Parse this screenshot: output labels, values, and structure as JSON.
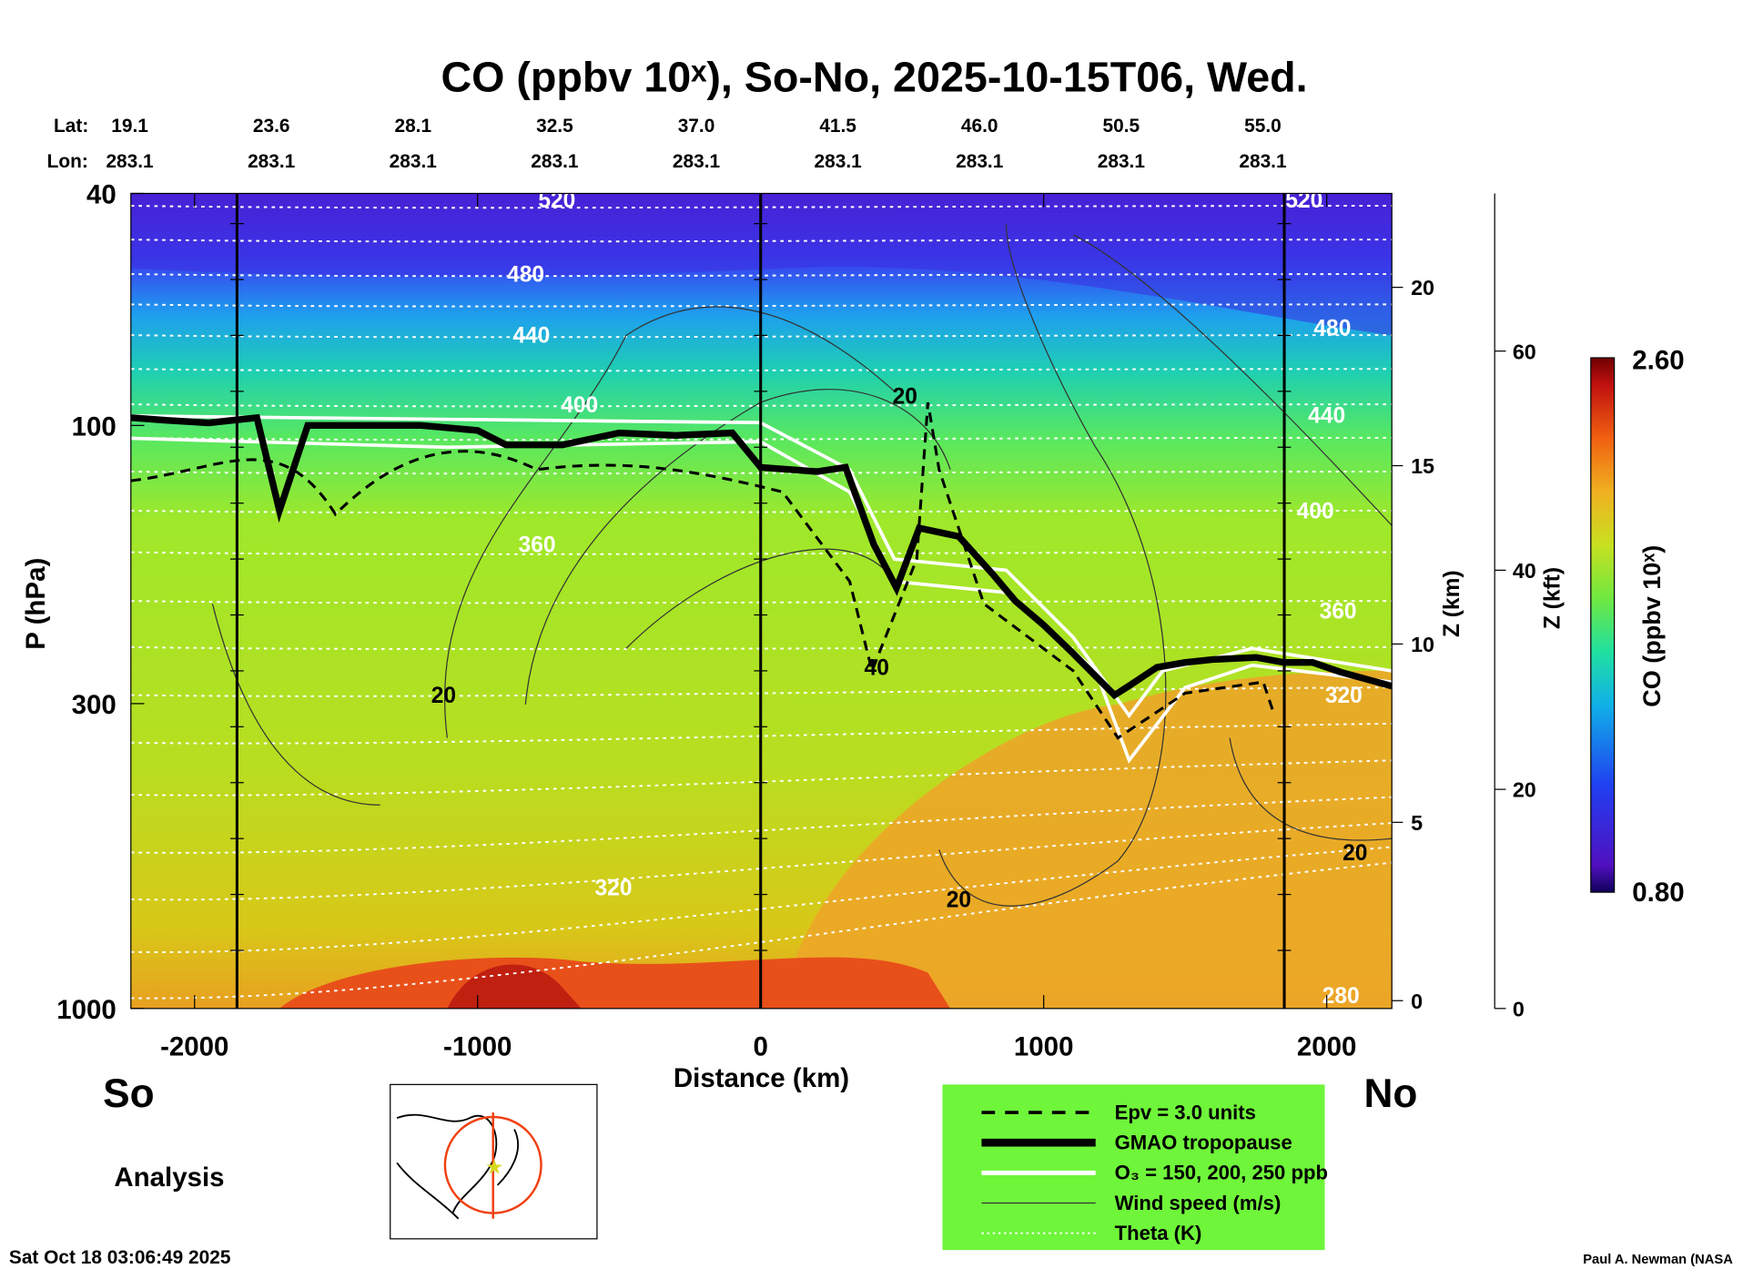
{
  "chart_data": {
    "type": "heatmap",
    "title": "CO (ppbv 10ˣ), So-No, 2025-10-15T06, Wed.",
    "xlabel": "Distance (km)",
    "ylabel": "P (hPa)",
    "y2label": "Z (km)",
    "y3label": "Z (kft)",
    "colorbar_label": "CO (ppbv 10ˣ)",
    "xlim": [
      -2225,
      2230
    ],
    "ylim": [
      1000,
      40
    ],
    "x_ticks": [
      -2000,
      -1000,
      0,
      1000,
      2000
    ],
    "x_tick_labels": [
      "-2000",
      "-1000",
      "0",
      "1000",
      "2000"
    ],
    "y_ticks": [
      40,
      100,
      300,
      1000
    ],
    "y_tick_labels": [
      "40",
      "100",
      "300",
      "1000"
    ],
    "zkm_ticks": [
      0,
      5,
      10,
      15,
      20
    ],
    "zkm_tick_labels": [
      "0",
      "5",
      "10",
      "15",
      "20"
    ],
    "zkft_ticks": [
      0,
      20,
      40,
      60
    ],
    "zkft_tick_labels": [
      "0",
      "20",
      "40",
      "60"
    ],
    "colorbar_range": [
      0.8,
      2.6
    ],
    "colorbar_labels": [
      "2.60",
      "0.80"
    ],
    "lat_label": "Lat:",
    "lon_label": "Lon:",
    "lat_values": [
      "19.1",
      "23.6",
      "28.1",
      "32.5",
      "37.0",
      "41.5",
      "46.0",
      "50.5",
      "55.0"
    ],
    "lon_values": [
      "283.1",
      "283.1",
      "283.1",
      "283.1",
      "283.1",
      "283.1",
      "283.1",
      "283.1",
      "283.1"
    ],
    "vertical_lines_km": [
      -1850,
      0,
      1850
    ],
    "theta_labels": [
      {
        "text": "520",
        "x": -720,
        "p": 41
      },
      {
        "text": "480",
        "x": -830,
        "p": 55
      },
      {
        "text": "440",
        "x": -810,
        "p": 70
      },
      {
        "text": "400",
        "x": -640,
        "p": 92
      },
      {
        "text": "360",
        "x": -790,
        "p": 160
      },
      {
        "text": "320",
        "x": -520,
        "p": 620
      },
      {
        "text": "520",
        "x": 1920,
        "p": 41
      },
      {
        "text": "480",
        "x": 2020,
        "p": 68
      },
      {
        "text": "440",
        "x": 2000,
        "p": 96
      },
      {
        "text": "400",
        "x": 1960,
        "p": 140
      },
      {
        "text": "360",
        "x": 2040,
        "p": 208
      },
      {
        "text": "320",
        "x": 2060,
        "p": 290
      },
      {
        "text": "280",
        "x": 2050,
        "p": 950
      }
    ],
    "wind_labels": [
      {
        "text": "20",
        "x": -1120,
        "p": 290
      },
      {
        "text": "20",
        "x": 510,
        "p": 89
      },
      {
        "text": "40",
        "x": 410,
        "p": 260
      },
      {
        "text": "20",
        "x": 700,
        "p": 650
      },
      {
        "text": "20",
        "x": 2100,
        "p": 540
      }
    ],
    "tropopause_p": [
      [
        -2225,
        97
      ],
      [
        -2100,
        98
      ],
      [
        -1950,
        99
      ],
      [
        -1780,
        97
      ],
      [
        -1700,
        140
      ],
      [
        -1600,
        100
      ],
      [
        -1400,
        100
      ],
      [
        -1200,
        100
      ],
      [
        -1000,
        102
      ],
      [
        -900,
        108
      ],
      [
        -700,
        108
      ],
      [
        -500,
        103
      ],
      [
        -300,
        104
      ],
      [
        -100,
        103
      ],
      [
        0,
        118
      ],
      [
        200,
        120
      ],
      [
        300,
        118
      ],
      [
        400,
        160
      ],
      [
        480,
        190
      ],
      [
        560,
        150
      ],
      [
        700,
        155
      ],
      [
        820,
        180
      ],
      [
        900,
        200
      ],
      [
        1000,
        220
      ],
      [
        1100,
        245
      ],
      [
        1250,
        290
      ],
      [
        1300,
        280
      ],
      [
        1400,
        260
      ],
      [
        1500,
        255
      ],
      [
        1600,
        252
      ],
      [
        1750,
        250
      ],
      [
        1850,
        255
      ],
      [
        1950,
        255
      ],
      [
        2050,
        265
      ],
      [
        2230,
        280
      ]
    ]
  },
  "page": {
    "so_label": "So",
    "no_label": "No",
    "analysis_label": "Analysis",
    "timestamp": "Sat Oct 18 03:06:49 2025",
    "credit": "Paul A. Newman (NASA",
    "legend": [
      {
        "label": "Epv = 3.0 units",
        "style": "dashed"
      },
      {
        "label": "GMAO tropopause",
        "style": "thick"
      },
      {
        "label": "O₃ = 150, 200, 250 ppb",
        "style": "white"
      },
      {
        "label": "Wind speed (m/s)",
        "style": "thin"
      },
      {
        "label": "Theta (K)",
        "style": "dotted"
      }
    ],
    "legend_bg": "#6ff53a"
  }
}
